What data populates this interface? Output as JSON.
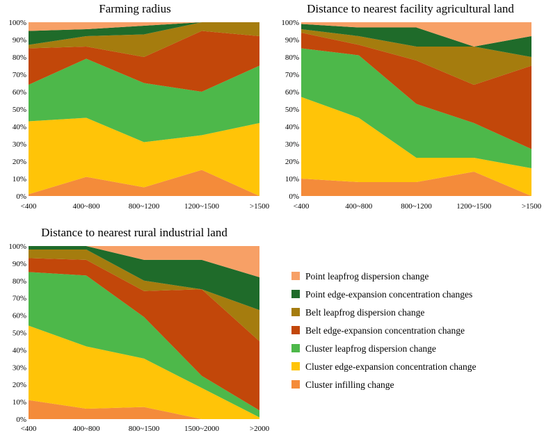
{
  "colors": {
    "point_leapfrog_dispersion": "#F7A066",
    "point_edge_expansion_concentration": "#1F6B2A",
    "belt_leapfrog_dispersion": "#A57C0E",
    "belt_edge_expansion_concentration": "#C2470A",
    "cluster_leapfrog_dispersion": "#4DB84A",
    "cluster_edge_expansion_concentration": "#FFC408",
    "cluster_infilling": "#F48B3A"
  },
  "legend": [
    {
      "key": "point_leapfrog_dispersion",
      "label": "Point leapfrog dispersion change"
    },
    {
      "key": "point_edge_expansion_concentration",
      "label": "Point edge-expansion concentration changes"
    },
    {
      "key": "belt_leapfrog_dispersion",
      "label": "Belt leapfrog dispersion change"
    },
    {
      "key": "belt_edge_expansion_concentration",
      "label": "Belt edge-expansion concentration change"
    },
    {
      "key": "cluster_leapfrog_dispersion",
      "label": "Cluster leapfrog dispersion change"
    },
    {
      "key": "cluster_edge_expansion_concentration",
      "label": "Cluster edge-expansion concentration change"
    },
    {
      "key": "cluster_infilling",
      "label": "Cluster infilling change"
    }
  ],
  "chart_data": [
    {
      "type": "area",
      "stacked": true,
      "title": "Farming radius",
      "categories": [
        "<400",
        "400~800",
        "800~1200",
        "1200~1500",
        ">1500"
      ],
      "yticks": [
        "0%",
        "10%",
        "20%",
        "30%",
        "40%",
        "50%",
        "60%",
        "70%",
        "80%",
        "90%",
        "100%"
      ],
      "ylim": [
        0,
        100
      ],
      "series": [
        {
          "key": "cluster_infilling",
          "name": "Cluster infilling change",
          "values": [
            1,
            11,
            5,
            15,
            0
          ]
        },
        {
          "key": "cluster_edge_expansion_concentration",
          "name": "Cluster edge-expansion concentration change",
          "values": [
            42,
            34,
            26,
            20,
            42
          ]
        },
        {
          "key": "cluster_leapfrog_dispersion",
          "name": "Cluster leapfrog dispersion change",
          "values": [
            21,
            34,
            34,
            25,
            33
          ]
        },
        {
          "key": "belt_edge_expansion_concentration",
          "name": "Belt edge-expansion concentration change",
          "values": [
            21,
            7,
            15,
            35,
            17
          ]
        },
        {
          "key": "belt_leapfrog_dispersion",
          "name": "Belt leapfrog dispersion change",
          "values": [
            2,
            6,
            13,
            5,
            8
          ]
        },
        {
          "key": "point_edge_expansion_concentration",
          "name": "Point edge-expansion concentration changes",
          "values": [
            8,
            4,
            5,
            0,
            0
          ]
        },
        {
          "key": "point_leapfrog_dispersion",
          "name": "Point leapfrog dispersion change",
          "values": [
            5,
            4,
            2,
            0,
            0
          ]
        }
      ]
    },
    {
      "type": "area",
      "stacked": true,
      "title": "Distance to nearest facility agricultural land",
      "categories": [
        "<400",
        "400~800",
        "800~1200",
        "1200~1500",
        ">1500"
      ],
      "yticks": [
        "0%",
        "10%",
        "20%",
        "30%",
        "40%",
        "50%",
        "60%",
        "70%",
        "80%",
        "90%",
        "100%"
      ],
      "ylim": [
        0,
        100
      ],
      "series": [
        {
          "key": "cluster_infilling",
          "name": "Cluster infilling change",
          "values": [
            10,
            8,
            8,
            14,
            0
          ]
        },
        {
          "key": "cluster_edge_expansion_concentration",
          "name": "Cluster edge-expansion concentration change",
          "values": [
            47,
            37,
            14,
            8,
            16
          ]
        },
        {
          "key": "cluster_leapfrog_dispersion",
          "name": "Cluster leapfrog dispersion change",
          "values": [
            28,
            36,
            31,
            20,
            11
          ]
        },
        {
          "key": "belt_edge_expansion_concentration",
          "name": "Belt edge-expansion concentration change",
          "values": [
            9,
            6,
            25,
            22,
            48
          ]
        },
        {
          "key": "belt_leapfrog_dispersion",
          "name": "Belt leapfrog dispersion change",
          "values": [
            2,
            5,
            8,
            22,
            5
          ]
        },
        {
          "key": "point_edge_expansion_concentration",
          "name": "Point edge-expansion concentration changes",
          "values": [
            3,
            5,
            11,
            0,
            12
          ]
        },
        {
          "key": "point_leapfrog_dispersion",
          "name": "Point leapfrog dispersion change",
          "values": [
            1,
            3,
            3,
            14,
            8
          ]
        }
      ]
    },
    {
      "type": "area",
      "stacked": true,
      "title": "Distance to nearest rural industrial land",
      "categories": [
        "<400",
        "400~800",
        "800~1500",
        "1500~2000",
        ">2000"
      ],
      "yticks": [
        "0%",
        "10%",
        "20%",
        "30%",
        "40%",
        "50%",
        "60%",
        "70%",
        "80%",
        "90%",
        "100%"
      ],
      "ylim": [
        0,
        100
      ],
      "series": [
        {
          "key": "cluster_infilling",
          "name": "Cluster infilling change",
          "values": [
            11,
            6,
            7,
            0,
            0
          ]
        },
        {
          "key": "cluster_edge_expansion_concentration",
          "name": "Cluster edge-expansion concentration change",
          "values": [
            43,
            36,
            28,
            18,
            1
          ]
        },
        {
          "key": "cluster_leapfrog_dispersion",
          "name": "Cluster leapfrog dispersion change",
          "values": [
            31,
            41,
            24,
            7,
            4
          ]
        },
        {
          "key": "belt_edge_expansion_concentration",
          "name": "Belt edge-expansion concentration change",
          "values": [
            8,
            9,
            15,
            50,
            40
          ]
        },
        {
          "key": "belt_leapfrog_dispersion",
          "name": "Belt leapfrog dispersion change",
          "values": [
            5,
            6,
            6,
            0,
            18
          ]
        },
        {
          "key": "point_edge_expansion_concentration",
          "name": "Point edge-expansion concentration changes",
          "values": [
            2,
            2,
            12,
            17,
            19
          ]
        },
        {
          "key": "point_leapfrog_dispersion",
          "name": "Point leapfrog dispersion change",
          "values": [
            0,
            0,
            8,
            8,
            18
          ]
        }
      ]
    }
  ]
}
